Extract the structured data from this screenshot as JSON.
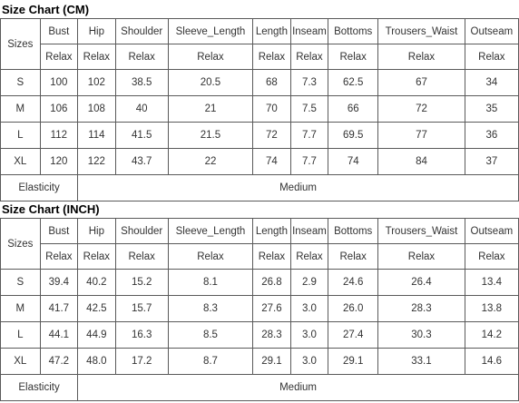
{
  "cm": {
    "title": "Size Chart (CM)",
    "sizes_label": "Sizes",
    "headers": [
      "Bust",
      "Hip",
      "Shoulder",
      "Sleeve_Length",
      "Length",
      "Inseam",
      "Bottoms",
      "Trousers_Waist",
      "Outseam"
    ],
    "subheaders": [
      "Relax",
      "Relax",
      "Relax",
      "Relax",
      "Relax",
      "Relax",
      "Relax",
      "Relax",
      "Relax"
    ],
    "rows": [
      {
        "size": "S",
        "values": [
          "100",
          "102",
          "38.5",
          "20.5",
          "68",
          "7.3",
          "62.5",
          "67",
          "34"
        ]
      },
      {
        "size": "M",
        "values": [
          "106",
          "108",
          "40",
          "21",
          "70",
          "7.5",
          "66",
          "72",
          "35"
        ]
      },
      {
        "size": "L",
        "values": [
          "112",
          "114",
          "41.5",
          "21.5",
          "72",
          "7.7",
          "69.5",
          "77",
          "36"
        ]
      },
      {
        "size": "XL",
        "values": [
          "120",
          "122",
          "43.7",
          "22",
          "74",
          "7.7",
          "74",
          "84",
          "37"
        ]
      }
    ],
    "elasticity_label": "Elasticity",
    "elasticity_value": "Medium"
  },
  "inch": {
    "title": "Size Chart (INCH)",
    "sizes_label": "Sizes",
    "headers": [
      "Bust",
      "Hip",
      "Shoulder",
      "Sleeve_Length",
      "Length",
      "Inseam",
      "Bottoms",
      "Trousers_Waist",
      "Outseam"
    ],
    "subheaders": [
      "Relax",
      "Relax",
      "Relax",
      "Relax",
      "Relax",
      "Relax",
      "Relax",
      "Relax",
      "Relax"
    ],
    "rows": [
      {
        "size": "S",
        "values": [
          "39.4",
          "40.2",
          "15.2",
          "8.1",
          "26.8",
          "2.9",
          "24.6",
          "26.4",
          "13.4"
        ]
      },
      {
        "size": "M",
        "values": [
          "41.7",
          "42.5",
          "15.7",
          "8.3",
          "27.6",
          "3.0",
          "26.0",
          "28.3",
          "13.8"
        ]
      },
      {
        "size": "L",
        "values": [
          "44.1",
          "44.9",
          "16.3",
          "8.5",
          "28.3",
          "3.0",
          "27.4",
          "30.3",
          "14.2"
        ]
      },
      {
        "size": "XL",
        "values": [
          "47.2",
          "48.0",
          "17.2",
          "8.7",
          "29.1",
          "3.0",
          "29.1",
          "33.1",
          "14.6"
        ]
      }
    ],
    "elasticity_label": "Elasticity",
    "elasticity_value": "Medium"
  }
}
